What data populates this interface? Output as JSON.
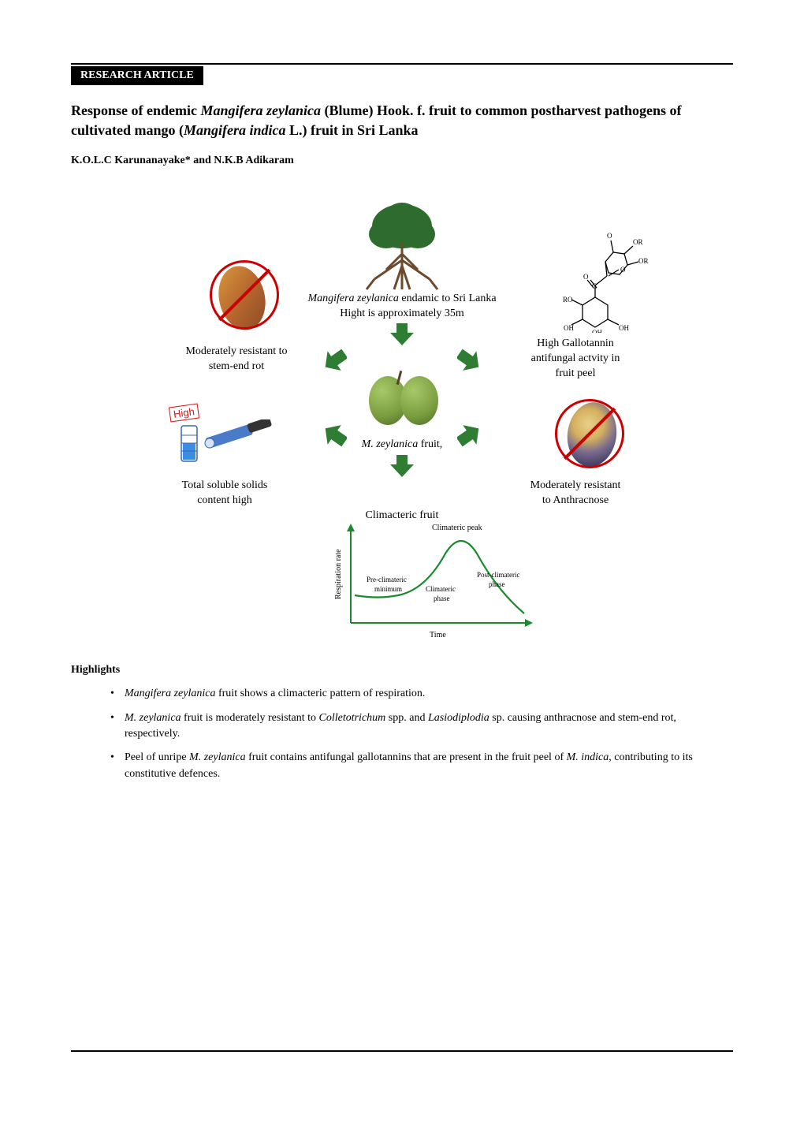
{
  "badge": "RESEARCH ARTICLE",
  "title_parts": {
    "pre": "Response of endemic ",
    "species1": "Mangifera zeylanica",
    "mid": " (Blume) Hook. f. fruit to common postharvest pathogens of cultivated mango (",
    "species2": "Mangifera indica",
    "post": " L.) fruit in Sri Lanka"
  },
  "authors": "K.O.L.C Karunanayake* and N.K.B Adikaram",
  "figure": {
    "top_caption_line1_ital": "Mangifera zeylanica",
    "top_caption_line1_rest": " endamic to Sri Lanka",
    "top_caption_line2": "Hight is approximately 35m",
    "left_mid_line1": "Moderately resistant to",
    "left_mid_line2": "stem-end rot",
    "right_mid_line1": "High Gallotannin",
    "right_mid_line2": "antifungal actvity in",
    "right_mid_line3": "fruit peel",
    "left_low_line1": "Total soluble solids",
    "left_low_line2": "content high",
    "right_low_line1": "Moderately resistant",
    "right_low_line2": "to Anthracnose",
    "center_mid_ital": "M. zeylanica",
    "center_mid_rest": " fruit,",
    "center_low": "Climacteric fruit",
    "high_label": "High",
    "chart": {
      "y_axis": "Respiration rate",
      "x_axis": "Time",
      "peak": "Climateric peak",
      "pre_label_1": "Pre-climateric",
      "pre_label_2": "minimum",
      "mid_label_1": "Climateric",
      "mid_label_2": "phase",
      "post_label_1": "Post-climateric",
      "post_label_2": "phase"
    },
    "chem_labels": {
      "o": "O",
      "or": "OR",
      "oh": "OH",
      "ro": "RO",
      "c": "C"
    },
    "colors": {
      "arrow_green": "#2e7d32",
      "ban_red": "#cc0000",
      "chart_green": "#1b8a2e",
      "tree_green": "#2d6b2f",
      "tree_trunk": "#6b4a2e"
    }
  },
  "highlights_heading": "Highlights",
  "highlights": [
    {
      "parts": [
        {
          "ital": true,
          "text": "Mangifera zeylanica"
        },
        {
          "ital": false,
          "text": " fruit shows a climacteric pattern of respiration."
        }
      ]
    },
    {
      "parts": [
        {
          "ital": true,
          "text": "M. zeylanica"
        },
        {
          "ital": false,
          "text": " fruit is moderately resistant to "
        },
        {
          "ital": true,
          "text": "Colletotrichum"
        },
        {
          "ital": false,
          "text": " spp. and "
        },
        {
          "ital": true,
          "text": "Lasiodiplodia"
        },
        {
          "ital": false,
          "text": " sp. causing anthracnose and stem-end rot, respectively."
        }
      ]
    },
    {
      "parts": [
        {
          "ital": false,
          "text": "Peel of unripe "
        },
        {
          "ital": true,
          "text": "M. zeylanica"
        },
        {
          "ital": false,
          "text": " fruit contains antifungal gallotannins that are present in the fruit peel of "
        },
        {
          "ital": true,
          "text": "M. indica"
        },
        {
          "ital": false,
          "text": ", contributing to its constitutive defences."
        }
      ]
    }
  ]
}
